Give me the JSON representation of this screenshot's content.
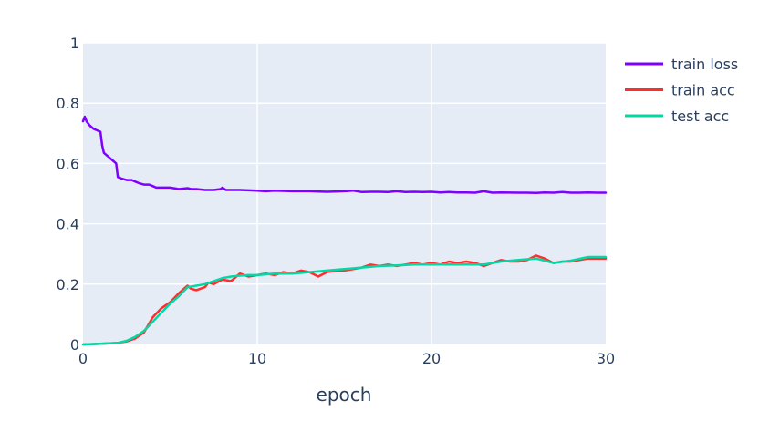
{
  "chart_data": {
    "type": "line",
    "xlabel": "epoch",
    "ylabel": "",
    "xlim": [
      0,
      30
    ],
    "ylim": [
      0,
      1
    ],
    "x_ticks": [
      "0",
      "10",
      "20",
      "30"
    ],
    "y_ticks": [
      "0",
      "0.2",
      "0.4",
      "0.6",
      "0.8",
      "1"
    ],
    "grid": true,
    "legend_position": "right",
    "colors": {
      "plot_background": "#e5ecf6",
      "grid": "#ffffff",
      "text": "#2a3f5f"
    },
    "series": [
      {
        "name": "train loss",
        "color": "#7f00ff",
        "x": [
          0,
          0.1,
          0.2,
          0.4,
          0.6,
          0.8,
          1.0,
          1.1,
          1.2,
          1.4,
          1.6,
          1.8,
          1.9,
          2.0,
          2.2,
          2.5,
          2.8,
          3.0,
          3.2,
          3.5,
          3.8,
          4.0,
          4.2,
          4.5,
          5.0,
          5.5,
          6.0,
          6.2,
          6.5,
          7.0,
          7.5,
          7.9,
          8.0,
          8.2,
          9.0,
          10.0,
          10.5,
          11.0,
          12.0,
          13.0,
          14.0,
          15.0,
          15.5,
          16.0,
          16.5,
          17.0,
          17.5,
          18.0,
          18.5,
          19.0,
          19.5,
          20.0,
          20.5,
          21.0,
          21.5,
          22.0,
          22.5,
          23.0,
          23.5,
          24.0,
          25.0,
          25.5,
          26.0,
          26.5,
          27.0,
          27.5,
          28.0,
          28.5,
          29.0,
          29.5,
          30.0
        ],
        "y": [
          0.74,
          0.755,
          0.74,
          0.725,
          0.715,
          0.71,
          0.705,
          0.66,
          0.635,
          0.625,
          0.615,
          0.605,
          0.6,
          0.555,
          0.55,
          0.545,
          0.545,
          0.54,
          0.535,
          0.53,
          0.53,
          0.525,
          0.52,
          0.52,
          0.52,
          0.515,
          0.518,
          0.515,
          0.515,
          0.512,
          0.512,
          0.515,
          0.52,
          0.512,
          0.512,
          0.51,
          0.508,
          0.51,
          0.508,
          0.508,
          0.506,
          0.508,
          0.51,
          0.505,
          0.506,
          0.506,
          0.505,
          0.508,
          0.505,
          0.506,
          0.505,
          0.506,
          0.504,
          0.505,
          0.504,
          0.504,
          0.503,
          0.508,
          0.503,
          0.504,
          0.503,
          0.503,
          0.502,
          0.504,
          0.503,
          0.505,
          0.503,
          0.503,
          0.504,
          0.503,
          0.503
        ]
      },
      {
        "name": "train acc",
        "color": "#ff2e2e",
        "x": [
          0,
          1.0,
          2.0,
          2.5,
          3.0,
          3.5,
          4.0,
          4.5,
          5.0,
          5.5,
          6.0,
          6.2,
          6.5,
          7.0,
          7.2,
          7.5,
          8.0,
          8.5,
          9.0,
          9.5,
          10.0,
          10.5,
          11.0,
          11.5,
          12.0,
          12.5,
          13.0,
          13.5,
          14.0,
          14.5,
          15.0,
          15.5,
          16.0,
          16.5,
          17.0,
          17.5,
          18.0,
          18.5,
          19.0,
          19.5,
          20.0,
          20.5,
          21.0,
          21.5,
          22.0,
          22.5,
          23.0,
          23.5,
          24.0,
          24.5,
          25.0,
          25.5,
          26.0,
          26.5,
          27.0,
          27.5,
          28.0,
          28.5,
          29.0,
          29.5,
          30.0
        ],
        "y": [
          0.0,
          0.002,
          0.005,
          0.01,
          0.02,
          0.04,
          0.09,
          0.12,
          0.14,
          0.17,
          0.195,
          0.185,
          0.18,
          0.19,
          0.205,
          0.2,
          0.215,
          0.21,
          0.235,
          0.225,
          0.23,
          0.235,
          0.23,
          0.24,
          0.235,
          0.245,
          0.24,
          0.225,
          0.24,
          0.245,
          0.245,
          0.25,
          0.255,
          0.265,
          0.26,
          0.265,
          0.26,
          0.265,
          0.27,
          0.265,
          0.27,
          0.265,
          0.275,
          0.27,
          0.275,
          0.27,
          0.26,
          0.27,
          0.28,
          0.275,
          0.275,
          0.28,
          0.295,
          0.285,
          0.27,
          0.275,
          0.275,
          0.28,
          0.285,
          0.285,
          0.285
        ]
      },
      {
        "name": "test acc",
        "color": "#00d9a6",
        "x": [
          0,
          1.0,
          2.0,
          2.5,
          3.0,
          3.5,
          4.0,
          4.5,
          5.0,
          5.5,
          6.0,
          6.5,
          7.0,
          7.5,
          8.0,
          8.5,
          9.0,
          9.5,
          10.0,
          11.0,
          12.0,
          13.0,
          14.0,
          15.0,
          16.0,
          17.0,
          18.0,
          19.0,
          20.0,
          21.0,
          22.0,
          23.0,
          24.0,
          25.0,
          26.0,
          27.0,
          28.0,
          29.0,
          30.0
        ],
        "y": [
          0.0,
          0.002,
          0.005,
          0.012,
          0.025,
          0.045,
          0.075,
          0.105,
          0.135,
          0.16,
          0.19,
          0.195,
          0.2,
          0.21,
          0.22,
          0.225,
          0.228,
          0.23,
          0.23,
          0.235,
          0.235,
          0.24,
          0.245,
          0.25,
          0.255,
          0.26,
          0.262,
          0.265,
          0.265,
          0.265,
          0.265,
          0.265,
          0.275,
          0.28,
          0.285,
          0.27,
          0.278,
          0.29,
          0.29
        ]
      }
    ]
  }
}
